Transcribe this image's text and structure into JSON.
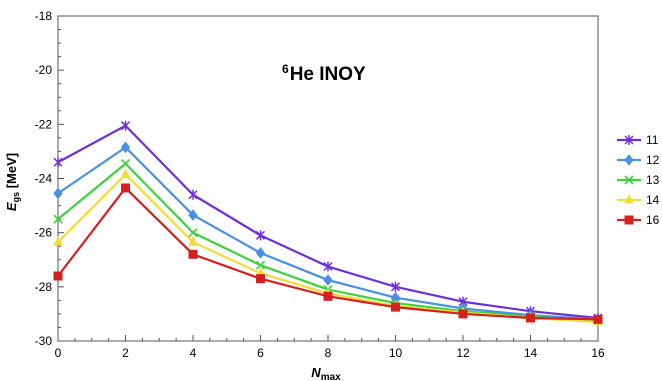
{
  "chart_data": {
    "type": "line",
    "title_sup": "6",
    "title": "He  INOY",
    "xlabel_main": "N",
    "xlabel_sub": "max",
    "ylabel_main": "E",
    "ylabel_sub": "gs",
    "ylabel_unit": " [MeV]",
    "x": [
      0,
      2,
      4,
      6,
      8,
      10,
      12,
      14,
      16
    ],
    "xlim": [
      0,
      16
    ],
    "ylim": [
      -30,
      -18
    ],
    "xticks": [
      "0",
      "2",
      "4",
      "6",
      "8",
      "10",
      "12",
      "14",
      "16"
    ],
    "yticks": [
      "-30",
      "-28",
      "-26",
      "-24",
      "-22",
      "-20",
      "-18"
    ],
    "grid": false,
    "legend_position": "right",
    "series": [
      {
        "name": "11",
        "color": "#6f2fd8",
        "marker": "asterisk",
        "values": [
          -23.4,
          -22.05,
          -24.6,
          -26.1,
          -27.25,
          -28.0,
          -28.55,
          -28.9,
          -29.15
        ]
      },
      {
        "name": "12",
        "color": "#4a8fe0",
        "marker": "diamond",
        "values": [
          -24.55,
          -22.85,
          -25.35,
          -26.75,
          -27.75,
          -28.4,
          -28.8,
          -29.05,
          -29.2
        ]
      },
      {
        "name": "13",
        "color": "#3ed23e",
        "marker": "x",
        "values": [
          -25.5,
          -23.45,
          -26.0,
          -27.2,
          -28.1,
          -28.6,
          -28.9,
          -29.1,
          -29.25
        ]
      },
      {
        "name": "14",
        "color": "#f0dc3c",
        "marker": "triangle",
        "values": [
          -26.35,
          -23.85,
          -26.35,
          -27.5,
          -28.25,
          -28.7,
          -28.95,
          -29.15,
          -29.3
        ]
      },
      {
        "name": "16",
        "color": "#d42020",
        "marker": "square",
        "values": [
          -27.6,
          -24.35,
          -26.8,
          -27.7,
          -28.35,
          -28.75,
          -29.0,
          -29.15,
          -29.2
        ]
      }
    ]
  }
}
